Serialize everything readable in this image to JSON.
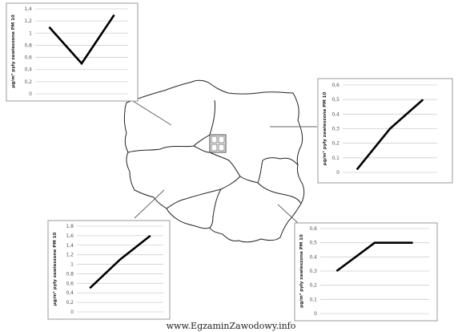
{
  "watermark": "www.EgzaminZawodowy.info",
  "chart_data": [
    {
      "type": "line",
      "ylabel": "µg/m³ pyły zawieszone PM 10",
      "yticks": [
        "0",
        "0,2",
        "0,4",
        "0,6",
        "0,8",
        "1",
        "1,2",
        "1,4"
      ],
      "ylim": [
        0,
        1.4
      ],
      "x": [
        1,
        2,
        3
      ],
      "values": [
        1.1,
        0.5,
        1.3
      ],
      "grid": true
    },
    {
      "type": "line",
      "ylabel": "µg/m³ pyły zawieszone PM 10",
      "yticks": [
        "0",
        "0,1",
        "0,2",
        "0,3",
        "0,4",
        "0,5",
        "0,6"
      ],
      "ylim": [
        0,
        0.6
      ],
      "x": [
        1,
        2,
        3
      ],
      "values": [
        0.02,
        0.3,
        0.5
      ],
      "grid": true
    },
    {
      "type": "line",
      "ylabel": "µg/m³ pyły zawieszone PM 10",
      "yticks": [
        "0",
        "0,2",
        "0,4",
        "0,6",
        "0,8",
        "1",
        "1,2",
        "1,4",
        "1,6",
        "1,8"
      ],
      "ylim": [
        0,
        1.8
      ],
      "x": [
        1,
        2,
        3
      ],
      "values": [
        0.5,
        1.1,
        1.6
      ],
      "grid": true
    },
    {
      "type": "line",
      "ylabel": "µg/m³ pyły zawieszone PM 10",
      "yticks": [
        "0",
        "0,1",
        "0,2",
        "0,3",
        "0,4",
        "0,5",
        "0,6"
      ],
      "ylim": [
        0,
        0.6
      ],
      "x": [
        1,
        2,
        3
      ],
      "values": [
        0.3,
        0.5,
        0.5
      ],
      "grid": true
    }
  ]
}
